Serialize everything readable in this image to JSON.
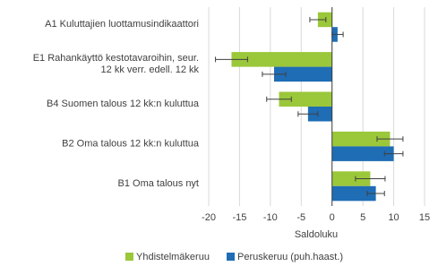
{
  "chart_data": {
    "type": "hbar",
    "categories": [
      "A1 Kuluttajien luottamusindikaattori",
      "E1 Rahankäyttö kestotavaroihin, seur. 12 kk verr. edell. 12 kk",
      "B4 Suomen talous 12 kk:n kuluttua",
      "B2 Oma talous 12 kk:n kuluttua",
      "B1 Oma talous nyt"
    ],
    "series": [
      {
        "name": "Yhdistelmäkeruu",
        "color": "#9bc73a",
        "values": [
          -2.3,
          -16.3,
          -8.6,
          9.4,
          6.2
        ],
        "errors": [
          1.3,
          2.6,
          2.0,
          2.1,
          2.4
        ]
      },
      {
        "name": "Peruskeruu (puh.haast.)",
        "color": "#1f6db5",
        "values": [
          0.9,
          -9.4,
          -3.9,
          10.0,
          7.1
        ],
        "errors": [
          0.9,
          1.9,
          1.6,
          1.5,
          1.4
        ]
      }
    ],
    "xlabel": "Saldoluku",
    "xlim": [
      -20,
      15
    ],
    "xticks": [
      -20,
      -15,
      -10,
      -5,
      0,
      5,
      10,
      15
    ],
    "grid": true,
    "legend": "bottom"
  }
}
